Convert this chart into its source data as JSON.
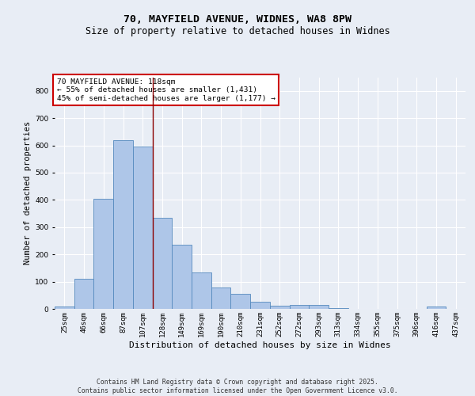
{
  "title_line1": "70, MAYFIELD AVENUE, WIDNES, WA8 8PW",
  "title_line2": "Size of property relative to detached houses in Widnes",
  "xlabel": "Distribution of detached houses by size in Widnes",
  "ylabel": "Number of detached properties",
  "bar_labels": [
    "25sqm",
    "46sqm",
    "66sqm",
    "87sqm",
    "107sqm",
    "128sqm",
    "149sqm",
    "169sqm",
    "190sqm",
    "210sqm",
    "231sqm",
    "252sqm",
    "272sqm",
    "293sqm",
    "313sqm",
    "334sqm",
    "355sqm",
    "375sqm",
    "396sqm",
    "416sqm",
    "437sqm"
  ],
  "bar_values": [
    8,
    110,
    405,
    620,
    595,
    335,
    235,
    135,
    78,
    55,
    25,
    12,
    15,
    15,
    2,
    0,
    0,
    0,
    0,
    10,
    0
  ],
  "bar_color": "#aec6e8",
  "bar_edge_color": "#5589be",
  "annotation_box_text": "70 MAYFIELD AVENUE: 118sqm\n← 55% of detached houses are smaller (1,431)\n45% of semi-detached houses are larger (1,177) →",
  "vline_x_index": 4.5,
  "vline_color": "#8b0000",
  "ylim": [
    0,
    850
  ],
  "yticks": [
    0,
    100,
    200,
    300,
    400,
    500,
    600,
    700,
    800
  ],
  "bg_color": "#e8edf5",
  "plot_bg_color": "#e8edf5",
  "footer_text": "Contains HM Land Registry data © Crown copyright and database right 2025.\nContains public sector information licensed under the Open Government Licence v3.0.",
  "title_fontsize": 9.5,
  "subtitle_fontsize": 8.5,
  "ylabel_fontsize": 7.5,
  "xlabel_fontsize": 8,
  "tick_fontsize": 6.5,
  "annot_fontsize": 6.8,
  "footer_fontsize": 5.8
}
